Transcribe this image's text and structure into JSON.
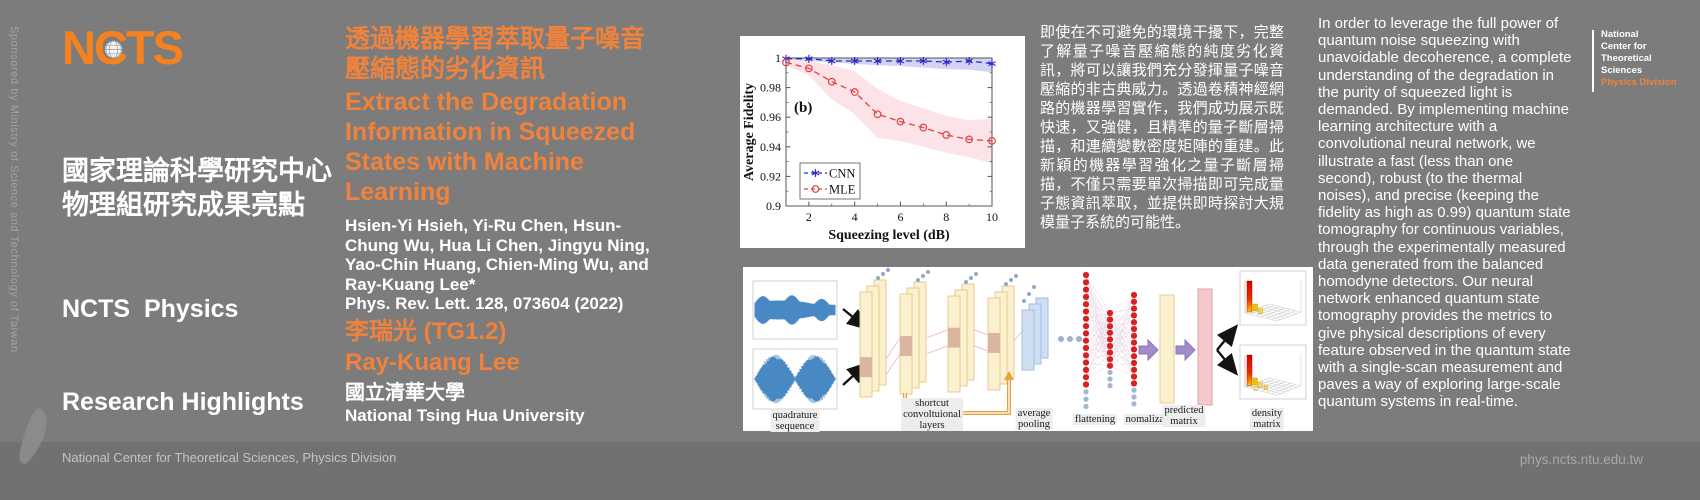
{
  "colors": {
    "background": "#7c7c7c",
    "accent_orange": "#f0823c",
    "logo_orange": "#f6821f",
    "footer_bar": "#717171"
  },
  "sidebar": {
    "sponsor": "Sponsored by Ministry of Science and Technology of Taiwan"
  },
  "brand": {
    "letters": [
      "N",
      "C",
      "T",
      "S"
    ]
  },
  "left_block": {
    "heading_zh": [
      "國家理論科學研究中心",
      "物理組研究成果亮點"
    ],
    "heading_en": [
      "NCTS  Physics",
      "Research Highlights"
    ]
  },
  "article": {
    "title_zh": "透過機器學習萃取量子噪音壓縮態的劣化資訊",
    "title_en": "Extract the Degradation Information in Squeezed States with Machine Learning",
    "authors": "Hsien-Yi Hsieh, Yi-Ru Chen, Hsun-Chung Wu, Hua Li Chen, Jingyu Ning, Yao-Chin Huang, Chien-Ming Wu, and Ray-Kuang Lee*",
    "journal": "Phys. Rev. Lett. 128, 073604 (2022)",
    "pi_zh": "李瑞光 (TG1.2)",
    "pi_en": "Ray-Kuang Lee",
    "affil_zh": "國立清華大學",
    "affil_en": "National Tsing Hua University"
  },
  "abstracts": {
    "zh": "即使在不可避免的環境干擾下，完整了解量子噪音壓縮態的純度劣化資訊，將可以讓我們充分發揮量子噪音壓縮的非古典威力。透過卷積神經網路的機器學習實作，我們成功展示既快速，又強健，且精準的量子斷層掃描，和連續變數密度矩陣的重建。此新穎的機器學習強化之量子斷層掃描，不僅只需要單次掃描即可完成量子態資訊萃取，並提供即時探討大規模量子系統的可能性。",
    "en": "In order to leverage the full power of quantum noise squeezing with unavoidable decoherence, a complete understanding of the degradation in the purity of squeezed light is demanded. By implementing machine learning architecture with a convolutional neural network, we illustrate a fast (less than one second), robust (to the thermal noises), and precise (keeping the fidelity as high as 0.99) quantum state tomography for continuous variables, through the experimentally measured data generated from the balanced homodyne detectors. Our neural network enhanced quantum state tomography provides the metrics to give physical descriptions of every feature observed in the quantum state with a single-scan measurement and paves a way of exploring large-scale quantum systems in real-time."
  },
  "corner_logo": {
    "lines": [
      "National",
      "Center for",
      "Theoretical",
      "Sciences"
    ],
    "division": "Physics Division"
  },
  "footer": {
    "org": "National Center for Theoretical Sciences, Physics Division",
    "url": "phys.ncts.ntu.edu.tw"
  },
  "chart_data": {
    "type": "line",
    "panel_label": "(b)",
    "xlabel": "Squeezing level (dB)",
    "ylabel": "Average Fidelity",
    "xlim": [
      1,
      10
    ],
    "ylim": [
      0.9,
      1.0
    ],
    "xticks": [
      2,
      4,
      6,
      8,
      10
    ],
    "yticks": [
      {
        "v": 1.0,
        "label": "1"
      },
      {
        "v": 0.98,
        "label": "0.98"
      },
      {
        "v": 0.96,
        "label": "0.96"
      },
      {
        "v": 0.94,
        "label": "0.94"
      },
      {
        "v": 0.92,
        "label": "0.92"
      },
      {
        "v": 0.9,
        "label": "0.9"
      }
    ],
    "x": [
      1,
      2,
      3,
      4,
      5,
      6,
      7,
      8,
      9,
      10
    ],
    "legend_position": "lower-left",
    "grid": false,
    "series": [
      {
        "name": "CNN",
        "color": "#2a2ac8",
        "band_color": "#c9c9ef",
        "marker": "asterisk",
        "values": [
          0.9995,
          0.9995,
          0.998,
          0.998,
          0.998,
          0.998,
          0.998,
          0.9972,
          0.998,
          0.9962
        ],
        "band_upper": [
          1.0,
          1.0,
          1.0,
          1.0,
          1.0,
          1.0,
          1.0,
          1.0,
          1.0,
          1.0
        ],
        "band_lower": [
          0.999,
          0.998,
          0.997,
          0.996,
          0.995,
          0.9945,
          0.9935,
          0.9925,
          0.992,
          0.9905
        ]
      },
      {
        "name": "MLE",
        "color": "#e04343",
        "band_color": "#fadce2",
        "marker": "circle",
        "values": [
          0.997,
          0.993,
          0.984,
          0.977,
          0.962,
          0.957,
          0.953,
          0.948,
          0.945,
          0.944
        ],
        "band_upper": [
          0.999,
          0.998,
          0.995,
          0.991,
          0.979,
          0.971,
          0.966,
          0.961,
          0.958,
          0.959
        ],
        "band_lower": [
          0.995,
          0.988,
          0.972,
          0.962,
          0.946,
          0.944,
          0.94,
          0.936,
          0.933,
          0.929
        ]
      }
    ]
  },
  "diagram": {
    "labels": {
      "quadrature": {
        "l1": "quadrature",
        "l2": "sequence"
      },
      "shortcut": {
        "l1": "shortcut"
      },
      "conv": {
        "l1": "convoltuional",
        "l2": "layers"
      },
      "pooling": {
        "l1": "average",
        "l2": "pooling"
      },
      "flattening": {
        "l1": "flattening"
      },
      "normalization": {
        "l1": "nomalization"
      },
      "predicted": {
        "l1": "predicted",
        "l2": "matrix"
      },
      "density": {
        "l1": "density",
        "l2": "matrix"
      }
    }
  }
}
